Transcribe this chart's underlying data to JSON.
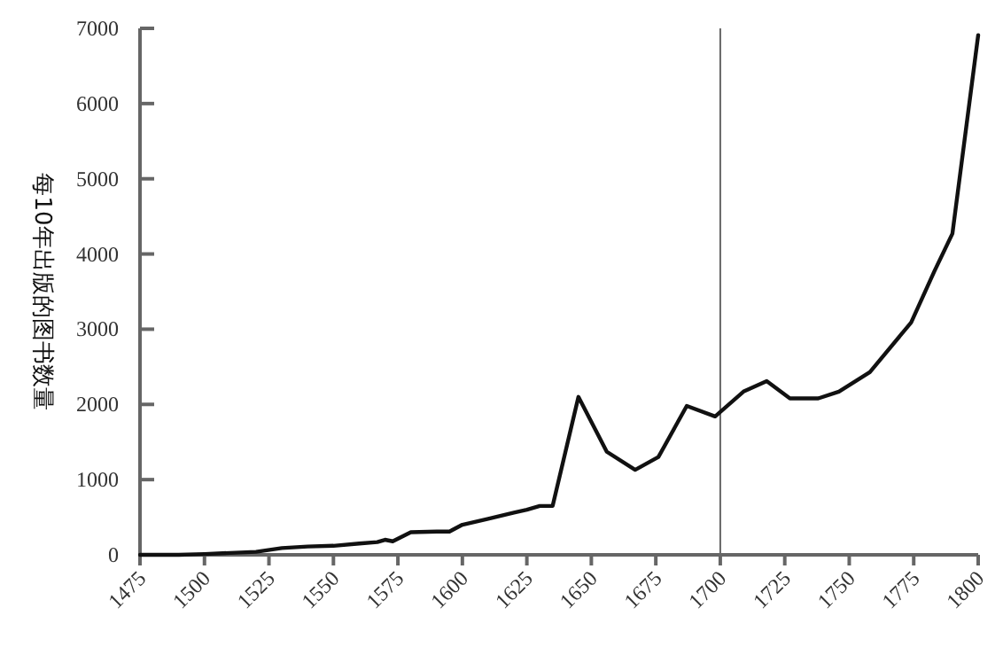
{
  "chart_data": {
    "type": "line",
    "ylabel": "每10年出版的图书数量",
    "x": [
      1475,
      1490,
      1500,
      1520,
      1530,
      1540,
      1550,
      1560,
      1567,
      1570,
      1573,
      1580,
      1590,
      1595,
      1600,
      1610,
      1620,
      1625,
      1630,
      1635,
      1645,
      1656,
      1667,
      1676,
      1687,
      1698,
      1709,
      1718,
      1727,
      1738,
      1746,
      1758,
      1774,
      1783,
      1790,
      1800
    ],
    "series": [
      {
        "color": "#111111",
        "values": [
          0,
          0,
          10,
          40,
          90,
          110,
          120,
          150,
          170,
          200,
          180,
          300,
          310,
          310,
          400,
          480,
          560,
          600,
          650,
          650,
          2100,
          1370,
          1130,
          1300,
          1980,
          1840,
          2170,
          2310,
          2080,
          2080,
          2170,
          2430,
          3090,
          3770,
          4270,
          6910
        ]
      }
    ],
    "xlim": [
      1475,
      1800
    ],
    "xticks": [
      1475,
      1500,
      1525,
      1550,
      1575,
      1600,
      1625,
      1650,
      1675,
      1700,
      1725,
      1750,
      1775,
      1800
    ],
    "ylim": [
      0,
      7000
    ],
    "yticks": [
      0,
      1000,
      2000,
      3000,
      4000,
      5000,
      6000,
      7000
    ],
    "ref_lines": [
      {
        "axis": "x",
        "value": 1700,
        "color": "#666666"
      }
    ],
    "grid": false,
    "marker": "none",
    "line_style": "solid"
  }
}
